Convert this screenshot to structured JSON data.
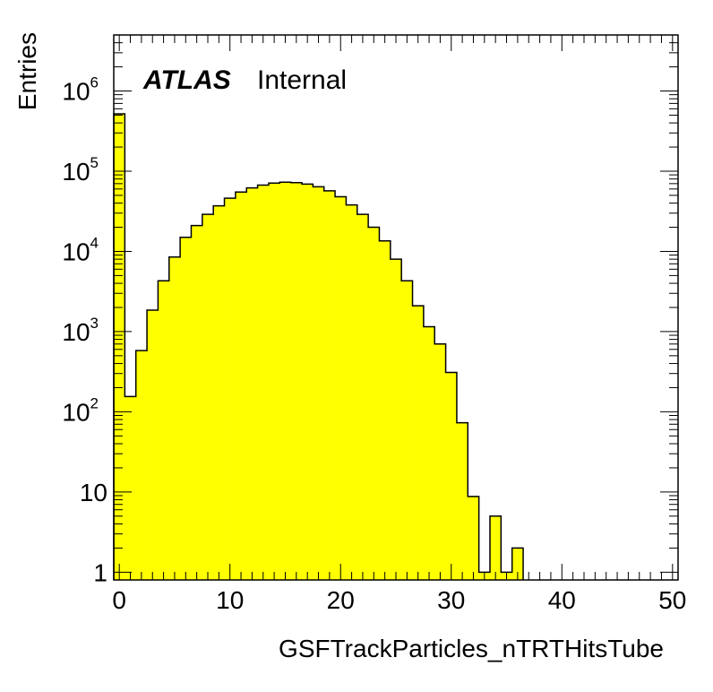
{
  "chart_data": {
    "type": "bar",
    "subtype": "histogram",
    "xlabel": "GSFTrackParticles_nTRTHitsTube",
    "ylabel": "Entries",
    "experiment_label": "ATLAS",
    "status_label": "Internal",
    "xlim": [
      -0.5,
      50.5
    ],
    "ylim": [
      0.8,
      5000000
    ],
    "yscale": "log",
    "x_ticks": [
      "0",
      "10",
      "20",
      "30",
      "40",
      "50"
    ],
    "y_ticks": [
      {
        "base": "1",
        "exp": ""
      },
      {
        "base": "10",
        "exp": ""
      },
      {
        "base": "10",
        "exp": "2"
      },
      {
        "base": "10",
        "exp": "3"
      },
      {
        "base": "10",
        "exp": "4"
      },
      {
        "base": "10",
        "exp": "5"
      },
      {
        "base": "10",
        "exp": "6"
      }
    ],
    "bin_width": 1,
    "bin_centers": [
      0,
      1,
      2,
      3,
      4,
      5,
      6,
      7,
      8,
      9,
      10,
      11,
      12,
      13,
      14,
      15,
      16,
      17,
      18,
      19,
      20,
      21,
      22,
      23,
      24,
      25,
      26,
      27,
      28,
      29,
      30,
      31,
      32,
      33,
      34,
      35,
      36
    ],
    "values": [
      520000,
      155,
      580,
      1850,
      4300,
      8500,
      15000,
      21000,
      29000,
      37000,
      46000,
      55000,
      62000,
      67000,
      71000,
      73000,
      72000,
      69000,
      64000,
      57000,
      48000,
      38000,
      29000,
      20000,
      13500,
      8000,
      4300,
      2100,
      1150,
      700,
      310,
      73,
      8.8,
      1,
      5,
      1,
      2
    ],
    "fill_color": "#ffff00",
    "line_color": "#000000",
    "grid": false
  }
}
